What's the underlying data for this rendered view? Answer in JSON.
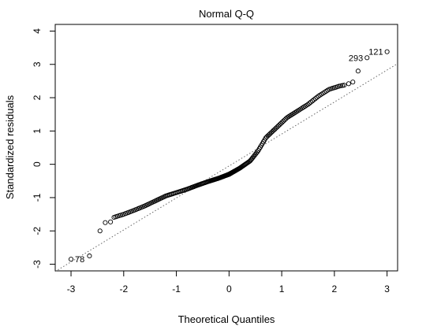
{
  "chart_data": {
    "type": "scatter",
    "title": "Normal Q-Q",
    "xlabel": "Theoretical Quantiles",
    "ylabel": "Standardized residuals",
    "xlim": [
      -3.3,
      3.2
    ],
    "ylim": [
      -3.2,
      4.2
    ],
    "x_ticks": [
      -3,
      -2,
      -1,
      0,
      1,
      2,
      3
    ],
    "y_ticks": [
      -3,
      -2,
      -1,
      0,
      1,
      2,
      3,
      4
    ],
    "grid": false,
    "reference_line": {
      "style": "dotted",
      "slope": 0.96,
      "intercept": -0.05
    },
    "labeled_points": [
      {
        "label": "121",
        "x": 3.0,
        "y": 3.38
      },
      {
        "label": "293",
        "x": 2.62,
        "y": 3.2
      },
      {
        "label": "78",
        "x": -3.0,
        "y": -2.85
      }
    ],
    "tail_points": [
      {
        "x": -2.65,
        "y": -2.75
      },
      {
        "x": -2.45,
        "y": -2.0
      },
      {
        "x": -2.35,
        "y": -1.75
      },
      {
        "x": -2.25,
        "y": -1.73
      },
      {
        "x": 2.45,
        "y": 2.8
      },
      {
        "x": 2.35,
        "y": 2.47
      },
      {
        "x": 2.27,
        "y": 2.42
      }
    ],
    "quantile_curve": [
      [
        -2.2,
        -1.6
      ],
      [
        -2.0,
        -1.5
      ],
      [
        -1.8,
        -1.38
      ],
      [
        -1.6,
        -1.25
      ],
      [
        -1.4,
        -1.1
      ],
      [
        -1.2,
        -0.95
      ],
      [
        -1.0,
        -0.85
      ],
      [
        -0.8,
        -0.75
      ],
      [
        -0.6,
        -0.63
      ],
      [
        -0.4,
        -0.52
      ],
      [
        -0.2,
        -0.42
      ],
      [
        0.0,
        -0.3
      ],
      [
        0.2,
        -0.12
      ],
      [
        0.4,
        0.1
      ],
      [
        0.55,
        0.4
      ],
      [
        0.7,
        0.8
      ],
      [
        0.9,
        1.1
      ],
      [
        1.1,
        1.4
      ],
      [
        1.3,
        1.6
      ],
      [
        1.5,
        1.8
      ],
      [
        1.7,
        2.05
      ],
      [
        1.9,
        2.25
      ],
      [
        2.1,
        2.35
      ],
      [
        2.2,
        2.38
      ]
    ],
    "curve_point_count": 220,
    "marker": "open-circle"
  }
}
